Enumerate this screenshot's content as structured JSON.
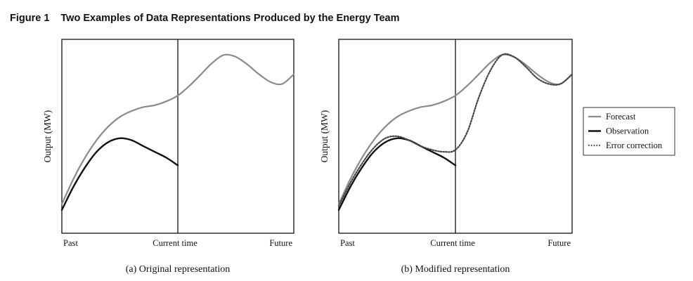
{
  "figure": {
    "number": "Figure 1",
    "title": "Two Examples of Data Representations Produced by the Energy Team"
  },
  "colors": {
    "forecast": "#8a8a8a",
    "observation": "#111111",
    "error_correction": "#444444",
    "frame": "#111111"
  },
  "legend": {
    "placement": "right",
    "items": [
      {
        "label": "Forecast",
        "series": "forecast",
        "style": "solid-gray"
      },
      {
        "label": "Observation",
        "series": "observation",
        "style": "solid-black"
      },
      {
        "label": "Error correction",
        "series": "error_correction",
        "style": "dotted"
      }
    ]
  },
  "chart_data": [
    {
      "type": "line",
      "caption": "(a) Original representation",
      "ylabel": "Output (MW)",
      "x_tick_labels": [
        "Past",
        "Current time",
        "Future"
      ],
      "xlim": [
        0,
        1
      ],
      "ylim": [
        0,
        1
      ],
      "divider_x": 0.5,
      "grid": false,
      "series": [
        {
          "name": "Forecast",
          "key": "forecast",
          "x": [
            0,
            0.05,
            0.1,
            0.15,
            0.2,
            0.25,
            0.3,
            0.35,
            0.4,
            0.45,
            0.5,
            0.55,
            0.6,
            0.65,
            0.7,
            0.75,
            0.8,
            0.85,
            0.9,
            0.95,
            1.0
          ],
          "y": [
            0.15,
            0.28,
            0.39,
            0.48,
            0.55,
            0.6,
            0.63,
            0.65,
            0.66,
            0.68,
            0.71,
            0.76,
            0.82,
            0.88,
            0.92,
            0.91,
            0.87,
            0.82,
            0.78,
            0.77,
            0.82
          ]
        },
        {
          "name": "Observation",
          "key": "observation",
          "x": [
            0,
            0.05,
            0.1,
            0.15,
            0.2,
            0.25,
            0.3,
            0.35,
            0.4,
            0.45,
            0.5
          ],
          "y": [
            0.12,
            0.24,
            0.34,
            0.42,
            0.47,
            0.49,
            0.48,
            0.45,
            0.42,
            0.39,
            0.35
          ]
        }
      ]
    },
    {
      "type": "line",
      "caption": "(b) Modified representation",
      "ylabel": "Output (MW)",
      "x_tick_labels": [
        "Past",
        "Current time",
        "Future"
      ],
      "xlim": [
        0,
        1
      ],
      "ylim": [
        0,
        1
      ],
      "divider_x": 0.5,
      "grid": false,
      "series": [
        {
          "name": "Forecast",
          "key": "forecast",
          "x": [
            0,
            0.05,
            0.1,
            0.15,
            0.2,
            0.25,
            0.3,
            0.35,
            0.4,
            0.45,
            0.5,
            0.55,
            0.6,
            0.65,
            0.7,
            0.75,
            0.8,
            0.85,
            0.9,
            0.95,
            1.0
          ],
          "y": [
            0.15,
            0.28,
            0.39,
            0.48,
            0.55,
            0.6,
            0.63,
            0.65,
            0.66,
            0.68,
            0.71,
            0.76,
            0.82,
            0.88,
            0.92,
            0.91,
            0.87,
            0.82,
            0.78,
            0.77,
            0.82
          ]
        },
        {
          "name": "Observation",
          "key": "observation",
          "x": [
            0,
            0.05,
            0.1,
            0.15,
            0.2,
            0.25,
            0.3,
            0.35,
            0.4,
            0.45,
            0.5
          ],
          "y": [
            0.12,
            0.24,
            0.34,
            0.42,
            0.47,
            0.49,
            0.48,
            0.45,
            0.42,
            0.39,
            0.35
          ]
        },
        {
          "name": "Error correction",
          "key": "error_correction",
          "x": [
            0,
            0.05,
            0.1,
            0.15,
            0.2,
            0.25,
            0.3,
            0.35,
            0.4,
            0.45,
            0.5,
            0.55,
            0.6,
            0.65,
            0.7,
            0.75,
            0.8,
            0.85,
            0.9,
            0.95,
            1.0
          ],
          "y": [
            0.14,
            0.26,
            0.36,
            0.44,
            0.49,
            0.5,
            0.48,
            0.45,
            0.43,
            0.42,
            0.43,
            0.52,
            0.7,
            0.84,
            0.92,
            0.91,
            0.86,
            0.8,
            0.77,
            0.77,
            0.82
          ]
        }
      ]
    }
  ]
}
